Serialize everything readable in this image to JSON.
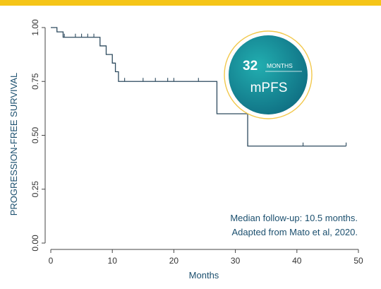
{
  "colors": {
    "top_bar": "#f5c518",
    "curve": "#2d4a5e",
    "axis": "#444444",
    "text": "#1b4f6e",
    "badge_ring": "#f2c84b",
    "badge_fill_light": "#22aeb0",
    "badge_fill_dark": "#0f6e82"
  },
  "badge": {
    "number": "32",
    "unit": "MONTHS",
    "label": "mPFS"
  },
  "notes": {
    "line1": "Median follow-up: 10.5 months.",
    "line2": "Adapted from Mato et al, 2020."
  },
  "chart_data": {
    "type": "line",
    "subtype": "kaplan-meier step",
    "xlabel": "Months",
    "ylabel": "PROGRESSION-FREE SURVIVAL",
    "xlim": [
      0,
      50
    ],
    "ylim": [
      0,
      1
    ],
    "x_ticks": [
      0,
      10,
      20,
      30,
      40,
      50
    ],
    "x_tick_labels": [
      "0",
      "10",
      "20",
      "30",
      "40",
      "50"
    ],
    "y_ticks": [
      0,
      0.25,
      0.5,
      0.75,
      1
    ],
    "y_tick_labels": [
      "0.00",
      "0.25",
      "0.50",
      "0.75",
      "1.00"
    ],
    "grid": false,
    "steps": [
      {
        "x": 0,
        "y": 1.0
      },
      {
        "x": 1,
        "y": 0.98
      },
      {
        "x": 2,
        "y": 0.955
      },
      {
        "x": 8,
        "y": 0.915
      },
      {
        "x": 9,
        "y": 0.875
      },
      {
        "x": 10,
        "y": 0.835
      },
      {
        "x": 10.5,
        "y": 0.795
      },
      {
        "x": 11,
        "y": 0.75
      },
      {
        "x": 27,
        "y": 0.6
      },
      {
        "x": 32,
        "y": 0.45
      },
      {
        "x": 48,
        "y": 0.45
      }
    ],
    "censored": [
      {
        "x": 2.2,
        "y": 0.955
      },
      {
        "x": 4,
        "y": 0.955
      },
      {
        "x": 5,
        "y": 0.955
      },
      {
        "x": 6,
        "y": 0.955
      },
      {
        "x": 7,
        "y": 0.955
      },
      {
        "x": 12,
        "y": 0.75
      },
      {
        "x": 15,
        "y": 0.75
      },
      {
        "x": 17,
        "y": 0.75
      },
      {
        "x": 19,
        "y": 0.75
      },
      {
        "x": 20,
        "y": 0.75
      },
      {
        "x": 24,
        "y": 0.75
      },
      {
        "x": 32,
        "y": 0.45
      },
      {
        "x": 41,
        "y": 0.45
      },
      {
        "x": 48,
        "y": 0.45
      }
    ]
  }
}
